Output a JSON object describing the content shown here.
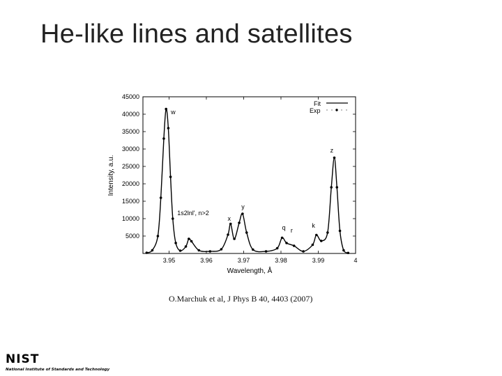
{
  "slide": {
    "title": "He-like lines and satellites",
    "citation": "O.Marchuk et al, J Phys B 40, 4403 (2007)"
  },
  "logo": {
    "wordmark": "NIST",
    "subtitle": "National Institute of Standards and Technology"
  },
  "chart_data": {
    "type": "line",
    "xlabel": "Wavelength, Å",
    "ylabel": "Intensity, a.u.",
    "xlim": [
      3.943,
      4.0
    ],
    "ylim": [
      0,
      45000
    ],
    "xticks": [
      "3.95",
      "3.96",
      "3.97",
      "3.98",
      "3.99",
      "4"
    ],
    "yticks": [
      "5000",
      "10000",
      "15000",
      "20000",
      "25000",
      "30000",
      "35000",
      "40000",
      "45000"
    ],
    "legend": {
      "placement": "top-right",
      "entries": [
        "Fit",
        "Exp"
      ]
    },
    "grid": false,
    "series": [
      {
        "name": "Exp",
        "style": "points",
        "x": [
          3.944,
          3.9455,
          3.947,
          3.9478,
          3.9486,
          3.9492,
          3.9498,
          3.9504,
          3.951,
          3.9518,
          3.953,
          3.9545,
          3.9553,
          3.956,
          3.958,
          3.961,
          3.964,
          3.9658,
          3.9665,
          3.9675,
          3.9688,
          3.9697,
          3.9708,
          3.9725,
          3.976,
          3.979,
          3.9803,
          3.9815,
          3.9835,
          3.986,
          3.9885,
          3.9895,
          3.9908,
          3.9925,
          3.9935,
          3.9943,
          3.995,
          3.9958,
          3.9968,
          3.998
        ],
        "y": [
          200,
          900,
          5000,
          16000,
          33000,
          41500,
          36000,
          22000,
          10000,
          3000,
          800,
          2000,
          4200,
          3500,
          900,
          600,
          1200,
          5400,
          8500,
          4200,
          8800,
          11400,
          6000,
          1100,
          600,
          1500,
          4500,
          3000,
          2200,
          600,
          2500,
          5300,
          3600,
          6000,
          19000,
          27500,
          19000,
          6500,
          900,
          150
        ]
      },
      {
        "name": "Fit",
        "style": "line",
        "x": [
          3.944,
          3.9455,
          3.947,
          3.9478,
          3.9486,
          3.9492,
          3.9498,
          3.9504,
          3.951,
          3.9518,
          3.953,
          3.9545,
          3.9553,
          3.956,
          3.958,
          3.961,
          3.964,
          3.9658,
          3.9665,
          3.9675,
          3.9688,
          3.9697,
          3.9708,
          3.9725,
          3.976,
          3.979,
          3.9803,
          3.9815,
          3.9835,
          3.986,
          3.9885,
          3.9895,
          3.9908,
          3.9925,
          3.9935,
          3.9943,
          3.995,
          3.9958,
          3.9968,
          3.998
        ],
        "y": [
          200,
          900,
          5000,
          16000,
          33000,
          41500,
          36000,
          22000,
          10000,
          3000,
          800,
          2000,
          4200,
          3500,
          900,
          600,
          1200,
          5400,
          8500,
          4200,
          8800,
          11400,
          6000,
          1100,
          600,
          1500,
          4500,
          3000,
          2200,
          600,
          2500,
          5300,
          3600,
          6000,
          19000,
          27500,
          19000,
          6500,
          900,
          150
        ]
      }
    ],
    "annotations": [
      {
        "text": "w",
        "x": 3.9505,
        "y": 40000
      },
      {
        "text": "1s2lnl', n>2",
        "x": 3.9522,
        "y": 11000
      },
      {
        "text": "x",
        "x": 3.9657,
        "y": 9400
      },
      {
        "text": "y",
        "x": 3.9694,
        "y": 12800
      },
      {
        "text": "q",
        "x": 3.9803,
        "y": 6800
      },
      {
        "text": "r",
        "x": 3.9826,
        "y": 6000
      },
      {
        "text": "k",
        "x": 3.9883,
        "y": 7400
      },
      {
        "text": "z",
        "x": 3.9932,
        "y": 29000
      }
    ]
  }
}
